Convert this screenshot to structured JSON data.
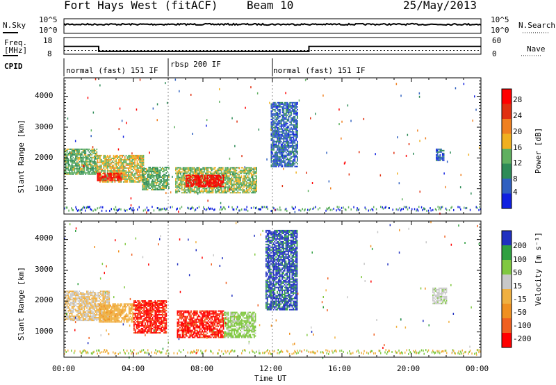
{
  "header": {
    "station": "Fort Hays West (fitACF)",
    "beam": "Beam 10",
    "date": "25/May/2013"
  },
  "strips": {
    "nsky_label": "N.Sky",
    "nsearch_label": "N.Search",
    "freq_label_1": "Freq.",
    "freq_label_2": "[MHz]",
    "nave_label": "Nave",
    "cpid_label": "CPID",
    "noise_ticks_left": [
      "10^5",
      "10^0"
    ],
    "noise_ticks_right": [
      "10^5",
      "10^0"
    ],
    "freq_ticks_left": [
      "18",
      "8"
    ],
    "freq_ticks_right": [
      "60",
      "0"
    ],
    "cpid_segments": [
      "normal (fast) 151 IF",
      "rbsp 200 IF",
      "normal (fast) 151 IF"
    ]
  },
  "axes": {
    "ylabel": "Slant Range [km]",
    "xlabel": "Time UT",
    "yticks": [
      "1000",
      "2000",
      "3000",
      "4000"
    ],
    "xticks": [
      "00:00",
      "04:00",
      "08:00",
      "12:00",
      "16:00",
      "20:00",
      "00:00"
    ]
  },
  "colorbars": {
    "power_title": "Power [dB]",
    "power_ticks": [
      "28",
      "24",
      "20",
      "16",
      "12",
      "8",
      "4"
    ],
    "velocity_title": "Velocity [m s⁻¹]",
    "velocity_ticks": [
      "200",
      "100",
      "50",
      "15",
      "-15",
      "-50",
      "-100",
      "-200"
    ]
  },
  "chart_data": [
    {
      "type": "heatmap",
      "panel": "power",
      "xlabel": "Time UT",
      "ylabel": "Slant Range [km]",
      "xlim_hours": [
        0,
        24
      ],
      "ylim_km": [
        180,
        4600
      ],
      "colorbar_label": "Power [dB]",
      "colorbar_range": [
        0,
        30
      ],
      "colors": [
        "#1020e0",
        "#3060c0",
        "#2e8b57",
        "#60b060",
        "#f0b020",
        "#f08020",
        "#e03010",
        "#ff0000"
      ],
      "echo_regions": [
        {
          "start_hours": 0.0,
          "end_hours": 1.9,
          "range_low_km": 1450,
          "range_high_km": 2300,
          "power_dB": 12
        },
        {
          "start_hours": 1.9,
          "end_hours": 4.6,
          "range_low_km": 1200,
          "range_high_km": 2100,
          "power_dB": 16
        },
        {
          "start_hours": 1.9,
          "end_hours": 3.3,
          "range_low_km": 1250,
          "range_high_km": 1500,
          "power_dB": 26
        },
        {
          "start_hours": 4.5,
          "end_hours": 6.0,
          "range_low_km": 950,
          "range_high_km": 1700,
          "power_dB": 12
        },
        {
          "start_hours": 6.4,
          "end_hours": 11.1,
          "range_low_km": 850,
          "range_high_km": 1700,
          "power_dB": 14
        },
        {
          "start_hours": 7.0,
          "end_hours": 9.2,
          "range_low_km": 1050,
          "range_high_km": 1450,
          "power_dB": 28
        },
        {
          "start_hours": 11.9,
          "end_hours": 13.4,
          "range_low_km": 1700,
          "range_high_km": 3800,
          "power_dB": 6
        },
        {
          "start_hours": 21.4,
          "end_hours": 21.9,
          "range_low_km": 1900,
          "range_high_km": 2300,
          "power_dB": 6
        }
      ]
    },
    {
      "type": "heatmap",
      "panel": "velocity",
      "xlabel": "Time UT",
      "ylabel": "Slant Range [km]",
      "xlim_hours": [
        0,
        24
      ],
      "ylim_km": [
        180,
        4600
      ],
      "colorbar_label": "Velocity [m s⁻¹]",
      "colorbar_range": [
        -250,
        250
      ],
      "colors": [
        "#ff0000",
        "#f06020",
        "#f09020",
        "#f0b040",
        "#c8c8c8",
        "#80c840",
        "#30a040",
        "#2030c0"
      ],
      "echo_regions": [
        {
          "start_hours": 0.0,
          "end_hours": 2.6,
          "range_low_km": 1350,
          "range_high_km": 2300,
          "velocity_ms": 0
        },
        {
          "start_hours": 2.0,
          "end_hours": 4.0,
          "range_low_km": 1300,
          "range_high_km": 1900,
          "velocity_ms": -40
        },
        {
          "start_hours": 4.0,
          "end_hours": 5.9,
          "range_low_km": 950,
          "range_high_km": 2000,
          "velocity_ms": -200
        },
        {
          "start_hours": 6.5,
          "end_hours": 9.2,
          "range_low_km": 800,
          "range_high_km": 1700,
          "velocity_ms": -200
        },
        {
          "start_hours": 9.2,
          "end_hours": 11.0,
          "range_low_km": 800,
          "range_high_km": 1650,
          "velocity_ms": 80
        },
        {
          "start_hours": 11.6,
          "end_hours": 13.4,
          "range_low_km": 1700,
          "range_high_km": 4300,
          "velocity_ms": 200
        },
        {
          "start_hours": 21.2,
          "end_hours": 22.0,
          "range_low_km": 1900,
          "range_high_km": 2400,
          "velocity_ms": 40
        }
      ]
    }
  ]
}
